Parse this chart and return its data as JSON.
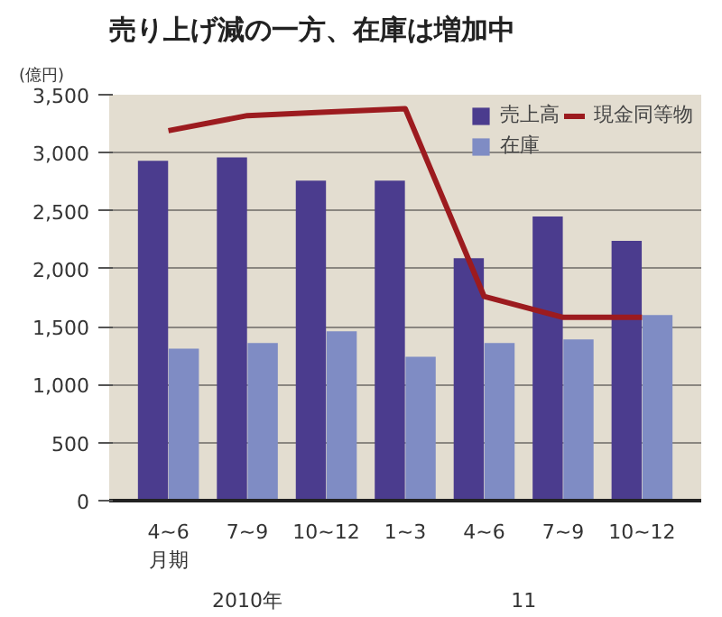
{
  "chart_data": {
    "type": "bar",
    "title": "売り上げ減の一方、在庫は増加中",
    "ylabel": "(億円)",
    "categories": [
      "4~6",
      "7~9",
      "10~12",
      "1~3",
      "4~6",
      "7~9",
      "10~12"
    ],
    "series": [
      {
        "name": "売上高",
        "color": "#4b3c8e",
        "values": [
          2930,
          2960,
          2760,
          2760,
          2090,
          2450,
          2240
        ]
      },
      {
        "name": "在庫",
        "color": "#7f8cc4",
        "values": [
          1310,
          1360,
          1460,
          1240,
          1360,
          1390,
          1600
        ]
      },
      {
        "name": "現金同等物",
        "type": "line",
        "color": "#9c1b1f",
        "values": [
          3190,
          3320,
          3350,
          3380,
          1760,
          1580,
          1580
        ]
      }
    ],
    "ylim": [
      0,
      3500
    ],
    "yticks": [
      {
        "value": 0,
        "label": "0"
      },
      {
        "value": 500,
        "label": "500"
      },
      {
        "value": 1000,
        "label": "1,000"
      },
      {
        "value": 1500,
        "label": "1,500"
      },
      {
        "value": 2000,
        "label": "2,000"
      },
      {
        "value": 2500,
        "label": "2,500"
      },
      {
        "value": 3000,
        "label": "3,000"
      },
      {
        "value": 3500,
        "label": "3,500"
      }
    ],
    "grid": "y",
    "legend": "top right",
    "marker": "none",
    "line_style": "solid",
    "annotations": [
      "月期",
      "2010年",
      "11"
    ]
  }
}
